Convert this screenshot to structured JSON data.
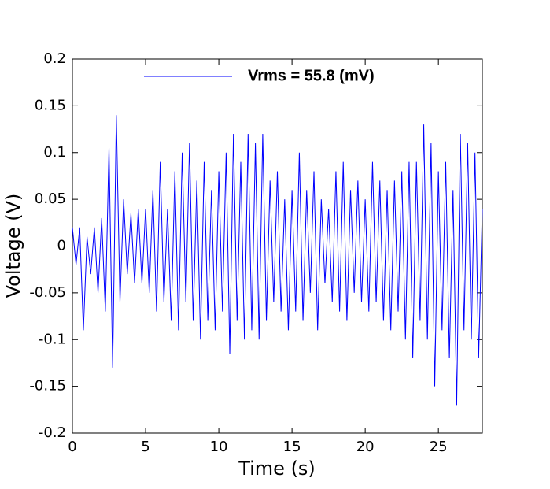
{
  "chart_data": {
    "type": "line",
    "x_label": "Time (s)",
    "y_label": "Voltage (V)",
    "xlim": [
      0,
      28
    ],
    "xticks": [
      0,
      5,
      10,
      15,
      20,
      25
    ],
    "ylim": [
      -0.2,
      0.2
    ],
    "yticks": [
      -0.2,
      -0.15,
      -0.1,
      -0.05,
      0,
      0.05,
      0.1,
      0.15,
      0.2
    ],
    "legend": "top",
    "x": [
      0,
      0.25,
      0.5,
      0.75,
      1,
      1.25,
      1.5,
      1.75,
      2,
      2.25,
      2.5,
      2.75,
      3,
      3.25,
      3.5,
      3.75,
      4,
      4.25,
      4.5,
      4.75,
      5,
      5.25,
      5.5,
      5.75,
      6,
      6.25,
      6.5,
      6.75,
      7,
      7.25,
      7.5,
      7.75,
      8,
      8.25,
      8.5,
      8.75,
      9,
      9.25,
      9.5,
      9.75,
      10,
      10.25,
      10.5,
      10.75,
      11,
      11.25,
      11.5,
      11.75,
      12,
      12.25,
      12.5,
      12.75,
      13,
      13.25,
      13.5,
      13.75,
      14,
      14.25,
      14.5,
      14.75,
      15,
      15.25,
      15.5,
      15.75,
      16,
      16.25,
      16.5,
      16.75,
      17,
      17.25,
      17.5,
      17.75,
      18,
      18.25,
      18.5,
      18.75,
      19,
      19.25,
      19.5,
      19.75,
      20,
      20.25,
      20.5,
      20.75,
      21,
      21.25,
      21.5,
      21.75,
      22,
      22.25,
      22.5,
      22.75,
      23,
      23.25,
      23.5,
      23.75,
      24,
      24.25,
      24.5,
      24.75,
      25,
      25.25,
      25.5,
      25.75,
      26,
      26.25,
      26.5,
      26.75,
      27,
      27.25,
      27.5,
      27.75,
      28
    ],
    "series": [
      {
        "name": "Vrms = 55.8  (mV)",
        "color": "#0000ff",
        "values": [
          0.02,
          -0.02,
          0.02,
          -0.09,
          0.01,
          -0.03,
          0.02,
          -0.05,
          0.03,
          -0.07,
          0.105,
          -0.13,
          0.14,
          -0.06,
          0.05,
          -0.03,
          0.035,
          -0.04,
          0.04,
          -0.04,
          0.04,
          -0.05,
          0.06,
          -0.07,
          0.09,
          -0.06,
          0.04,
          -0.08,
          0.08,
          -0.09,
          0.1,
          -0.06,
          0.11,
          -0.08,
          0.07,
          -0.1,
          0.09,
          -0.08,
          0.06,
          -0.09,
          0.08,
          -0.07,
          0.1,
          -0.115,
          0.12,
          -0.08,
          0.09,
          -0.1,
          0.12,
          -0.09,
          0.11,
          -0.1,
          0.12,
          -0.08,
          0.07,
          -0.06,
          0.08,
          -0.07,
          0.05,
          -0.09,
          0.06,
          -0.07,
          0.1,
          -0.08,
          0.06,
          -0.05,
          0.08,
          -0.09,
          0.05,
          -0.04,
          0.04,
          -0.06,
          0.08,
          -0.07,
          0.09,
          -0.08,
          0.06,
          -0.05,
          0.07,
          -0.06,
          0.05,
          -0.07,
          0.09,
          -0.06,
          0.07,
          -0.08,
          0.06,
          -0.09,
          0.07,
          -0.07,
          0.08,
          -0.1,
          0.09,
          -0.12,
          0.09,
          -0.08,
          0.13,
          -0.1,
          0.11,
          -0.15,
          0.08,
          -0.09,
          0.09,
          -0.12,
          0.06,
          -0.17,
          0.12,
          -0.09,
          0.11,
          -0.1,
          0.1,
          -0.12,
          0.04
        ]
      }
    ]
  }
}
